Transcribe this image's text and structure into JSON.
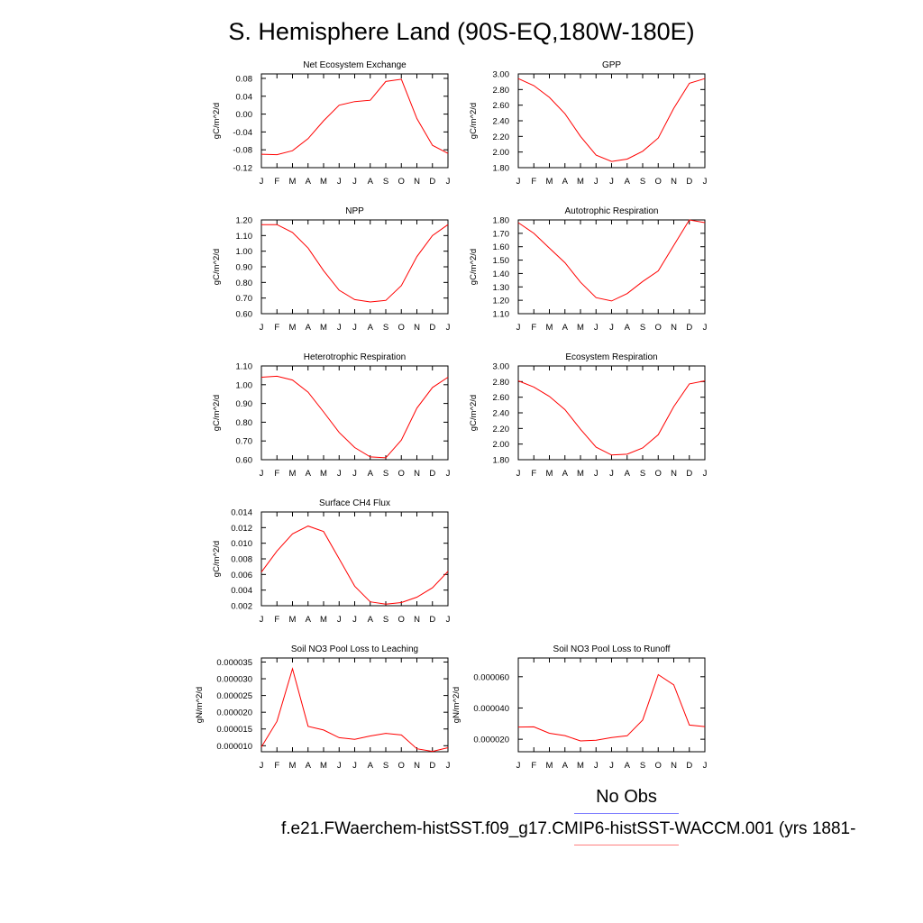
{
  "title": "S. Hemisphere Land (90S-EQ,180W-180E)",
  "legend": {
    "obs_label": "No Obs",
    "case_label": "f.e21.FWaerchem-histSST.f09_g17.CMIP6-histSST-WACCM.001 (yrs 1881-",
    "obs_color": "#7f7fff",
    "case_color": "#ff7f7f"
  },
  "colors": {
    "series": "#ff0000",
    "axis": "#000000"
  },
  "chart_data": [
    {
      "type": "line",
      "title": "Net Ecosystem Exchange",
      "ylabel": "gC/m^2/d",
      "xticks": [
        "J",
        "F",
        "M",
        "A",
        "M",
        "J",
        "J",
        "A",
        "S",
        "O",
        "N",
        "D",
        "J"
      ],
      "yticks": [
        "0.08",
        "0.04",
        "0.00",
        "-0.04",
        "-0.08",
        "-0.12"
      ],
      "ylim": [
        -0.12,
        0.09
      ],
      "values": [
        -0.09,
        -0.091,
        -0.082,
        -0.055,
        -0.015,
        0.02,
        0.028,
        0.031,
        0.073,
        0.078,
        -0.01,
        -0.07,
        -0.088
      ]
    },
    {
      "type": "line",
      "title": "GPP",
      "ylabel": "gC/m^2/d",
      "xticks": [
        "J",
        "F",
        "M",
        "A",
        "M",
        "J",
        "J",
        "A",
        "S",
        "O",
        "N",
        "D",
        "J"
      ],
      "yticks": [
        "3.00",
        "2.80",
        "2.60",
        "2.40",
        "2.20",
        "2.00",
        "1.80"
      ],
      "ylim": [
        1.8,
        3.0
      ],
      "values": [
        2.94,
        2.85,
        2.7,
        2.49,
        2.2,
        1.96,
        1.88,
        1.91,
        2.01,
        2.18,
        2.56,
        2.88,
        2.94
      ]
    },
    {
      "type": "line",
      "title": "NPP",
      "ylabel": "gC/m^2/d",
      "xticks": [
        "J",
        "F",
        "M",
        "A",
        "M",
        "J",
        "J",
        "A",
        "S",
        "O",
        "N",
        "D",
        "J"
      ],
      "yticks": [
        "1.20",
        "1.10",
        "1.00",
        "0.90",
        "0.80",
        "0.70",
        "0.60"
      ],
      "ylim": [
        0.6,
        1.2
      ],
      "values": [
        1.17,
        1.17,
        1.12,
        1.02,
        0.875,
        0.75,
        0.69,
        0.675,
        0.685,
        0.78,
        0.965,
        1.1,
        1.17
      ]
    },
    {
      "type": "line",
      "title": "Autotrophic Respiration",
      "ylabel": "gC/m^2/d",
      "xticks": [
        "J",
        "F",
        "M",
        "A",
        "M",
        "J",
        "J",
        "A",
        "S",
        "O",
        "N",
        "D",
        "J"
      ],
      "yticks": [
        "1.80",
        "1.70",
        "1.60",
        "1.50",
        "1.40",
        "1.30",
        "1.20",
        "1.10"
      ],
      "ylim": [
        1.1,
        1.8
      ],
      "values": [
        1.78,
        1.7,
        1.59,
        1.48,
        1.335,
        1.22,
        1.195,
        1.25,
        1.34,
        1.42,
        1.61,
        1.8,
        1.78
      ]
    },
    {
      "type": "line",
      "title": "Heterotrophic Respiration",
      "ylabel": "gC/m^2/d",
      "xticks": [
        "J",
        "F",
        "M",
        "A",
        "M",
        "J",
        "J",
        "A",
        "S",
        "O",
        "N",
        "D",
        "J"
      ],
      "yticks": [
        "1.10",
        "1.00",
        "0.90",
        "0.80",
        "0.70",
        "0.60"
      ],
      "ylim": [
        0.6,
        1.1
      ],
      "values": [
        1.04,
        1.045,
        1.025,
        0.96,
        0.855,
        0.745,
        0.665,
        0.615,
        0.61,
        0.705,
        0.875,
        0.985,
        1.04
      ]
    },
    {
      "type": "line",
      "title": "Ecosystem Respiration",
      "ylabel": "gC/m^2/d",
      "xticks": [
        "J",
        "F",
        "M",
        "A",
        "M",
        "J",
        "J",
        "A",
        "S",
        "O",
        "N",
        "D",
        "J"
      ],
      "yticks": [
        "3.00",
        "2.80",
        "2.60",
        "2.40",
        "2.20",
        "2.00",
        "1.80"
      ],
      "ylim": [
        1.8,
        3.0
      ],
      "values": [
        2.81,
        2.73,
        2.61,
        2.44,
        2.19,
        1.96,
        1.86,
        1.87,
        1.95,
        2.12,
        2.48,
        2.77,
        2.81
      ]
    },
    {
      "type": "line",
      "title": "Surface CH4 Flux",
      "ylabel": "gC/m^2/d",
      "xticks": [
        "J",
        "F",
        "M",
        "A",
        "M",
        "J",
        "J",
        "A",
        "S",
        "O",
        "N",
        "D",
        "J"
      ],
      "yticks": [
        "0.014",
        "0.012",
        "0.010",
        "0.008",
        "0.006",
        "0.004",
        "0.002"
      ],
      "ylim": [
        0.002,
        0.014
      ],
      "values": [
        0.0063,
        0.009,
        0.0112,
        0.0122,
        0.0115,
        0.008,
        0.0045,
        0.0025,
        0.0022,
        0.0024,
        0.0031,
        0.0043,
        0.0064
      ]
    },
    {
      "type": "line",
      "title": "Soil NO3 Pool Loss to Leaching",
      "ylabel": "gN/m^2/d",
      "xticks": [
        "J",
        "F",
        "M",
        "A",
        "M",
        "J",
        "J",
        "A",
        "S",
        "O",
        "N",
        "D",
        "J"
      ],
      "yticks": [
        "0.000035",
        "0.000030",
        "0.000025",
        "0.000020",
        "0.000015",
        "0.000010"
      ],
      "ylim": [
        8.2e-06,
        3.62e-05
      ],
      "values": [
        9.6e-06,
        1.73e-05,
        3.3e-05,
        1.58e-05,
        1.47e-05,
        1.24e-05,
        1.19e-05,
        1.29e-05,
        1.37e-05,
        1.32e-05,
        9.1e-06,
        8.3e-06,
        9.4e-06
      ]
    },
    {
      "type": "line",
      "title": "Soil NO3 Pool Loss to Runoff",
      "ylabel": "gN/m^2/d",
      "xticks": [
        "J",
        "F",
        "M",
        "A",
        "M",
        "J",
        "J",
        "A",
        "S",
        "O",
        "N",
        "D",
        "J"
      ],
      "yticks": [
        "0.000060",
        "0.000040",
        "0.000020"
      ],
      "ylim": [
        1.2e-05,
        7.2e-05
      ],
      "values": [
        2.78e-05,
        2.79e-05,
        2.38e-05,
        2.23e-05,
        1.89e-05,
        1.93e-05,
        2.11e-05,
        2.22e-05,
        3.23e-05,
        6.13e-05,
        5.48e-05,
        2.91e-05,
        2.81e-05
      ]
    }
  ]
}
